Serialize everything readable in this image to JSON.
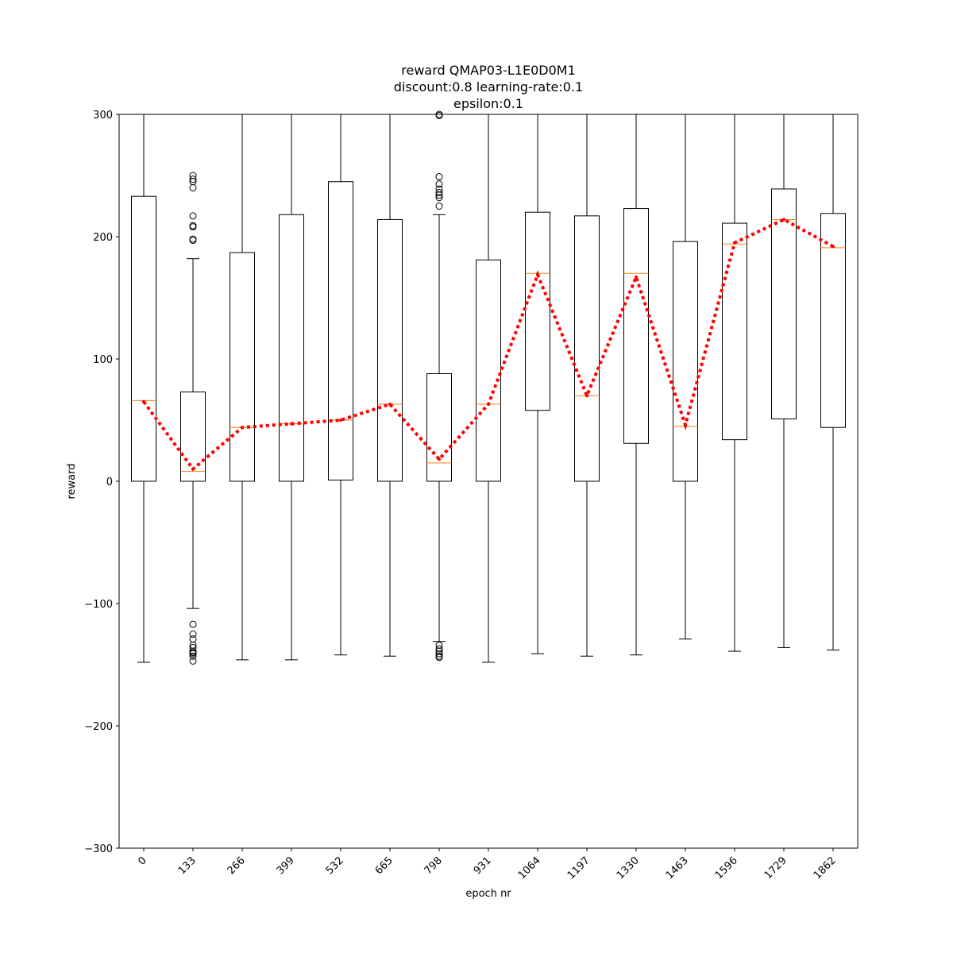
{
  "chart_data": {
    "type": "box",
    "title_lines": [
      "reward QMAP03-L1E0D0M1",
      "discount:0.8 learning-rate:0.1",
      "epsilon:0.1"
    ],
    "xlabel": "epoch nr",
    "ylabel": "reward",
    "ylim": [
      -300,
      300
    ],
    "yticks": [
      -300,
      -200,
      -100,
      0,
      100,
      200,
      300
    ],
    "ytick_labels": [
      "−300",
      "−200",
      "−100",
      "0",
      "100",
      "200",
      "300"
    ],
    "categories": [
      "0",
      "133",
      "266",
      "399",
      "532",
      "665",
      "798",
      "931",
      "1064",
      "1197",
      "1330",
      "1463",
      "1596",
      "1729",
      "1862"
    ],
    "boxes": [
      {
        "q1": 0,
        "median": 66,
        "q3": 233,
        "whisker_low": -148,
        "whisker_high": 300,
        "outliers": []
      },
      {
        "q1": 0,
        "median": 8,
        "q3": 73,
        "whisker_low": -104,
        "whisker_high": 182,
        "outliers": [
          197,
          198,
          208,
          209,
          217,
          240,
          245,
          247,
          250,
          -117,
          -125,
          -129,
          -134,
          -136,
          -139,
          -140,
          -141,
          -143,
          -147
        ]
      },
      {
        "q1": 0,
        "median": 44,
        "q3": 187,
        "whisker_low": -146,
        "whisker_high": 300,
        "outliers": []
      },
      {
        "q1": 0,
        "median": 47,
        "q3": 218,
        "whisker_low": -146,
        "whisker_high": 300,
        "outliers": []
      },
      {
        "q1": 1,
        "median": 50,
        "q3": 245,
        "whisker_low": -142,
        "whisker_high": 300,
        "outliers": []
      },
      {
        "q1": 0,
        "median": 63,
        "q3": 214,
        "whisker_low": -143,
        "whisker_high": 300,
        "outliers": []
      },
      {
        "q1": 0,
        "median": 15,
        "q3": 88,
        "whisker_low": -131,
        "whisker_high": 218,
        "outliers": [
          225,
          232,
          234,
          236,
          239,
          243,
          249,
          299,
          300,
          -134,
          -137,
          -139,
          -141,
          -143,
          -144
        ]
      },
      {
        "q1": 0,
        "median": 63,
        "q3": 181,
        "whisker_low": -148,
        "whisker_high": 300,
        "outliers": []
      },
      {
        "q1": 58,
        "median": 170,
        "q3": 220,
        "whisker_low": -141,
        "whisker_high": 300,
        "outliers": []
      },
      {
        "q1": 0,
        "median": 70,
        "q3": 217,
        "whisker_low": -143,
        "whisker_high": 300,
        "outliers": []
      },
      {
        "q1": 31,
        "median": 170,
        "q3": 223,
        "whisker_low": -142,
        "whisker_high": 300,
        "outliers": []
      },
      {
        "q1": 0,
        "median": 45,
        "q3": 196,
        "whisker_low": -129,
        "whisker_high": 300,
        "outliers": []
      },
      {
        "q1": 34,
        "median": 194,
        "q3": 211,
        "whisker_low": -139,
        "whisker_high": 300,
        "outliers": []
      },
      {
        "q1": 51,
        "median": 214,
        "q3": 239,
        "whisker_low": -136,
        "whisker_high": 300,
        "outliers": []
      },
      {
        "q1": 44,
        "median": 191,
        "q3": 219,
        "whisker_low": -138,
        "whisker_high": 300,
        "outliers": []
      }
    ],
    "mean_line": {
      "values": [
        65,
        10,
        44,
        47,
        50,
        63,
        18,
        63,
        169,
        70,
        167,
        46,
        195,
        214,
        192
      ],
      "color": "#ff0000",
      "style": "dotted"
    },
    "colors": {
      "box": "#000000",
      "median": "#ff7f0e",
      "mean_line": "#ff0000"
    },
    "grid": false
  }
}
